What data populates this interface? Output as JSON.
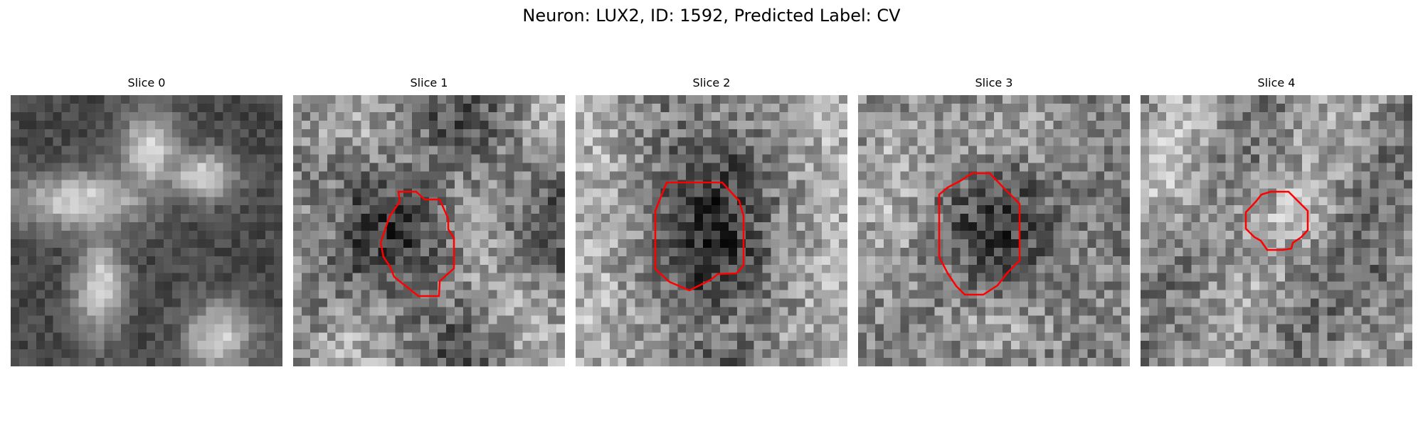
{
  "title": "Neuron: LUX2, ID: 1592, Predicted Label: CV",
  "contour_color": "#ff0000",
  "slices": [
    {
      "label": "Slice 0",
      "has_contour": false
    },
    {
      "label": "Slice 1",
      "has_contour": true
    },
    {
      "label": "Slice 2",
      "has_contour": true
    },
    {
      "label": "Slice 3",
      "has_contour": true
    },
    {
      "label": "Slice 4",
      "has_contour": true
    }
  ]
}
